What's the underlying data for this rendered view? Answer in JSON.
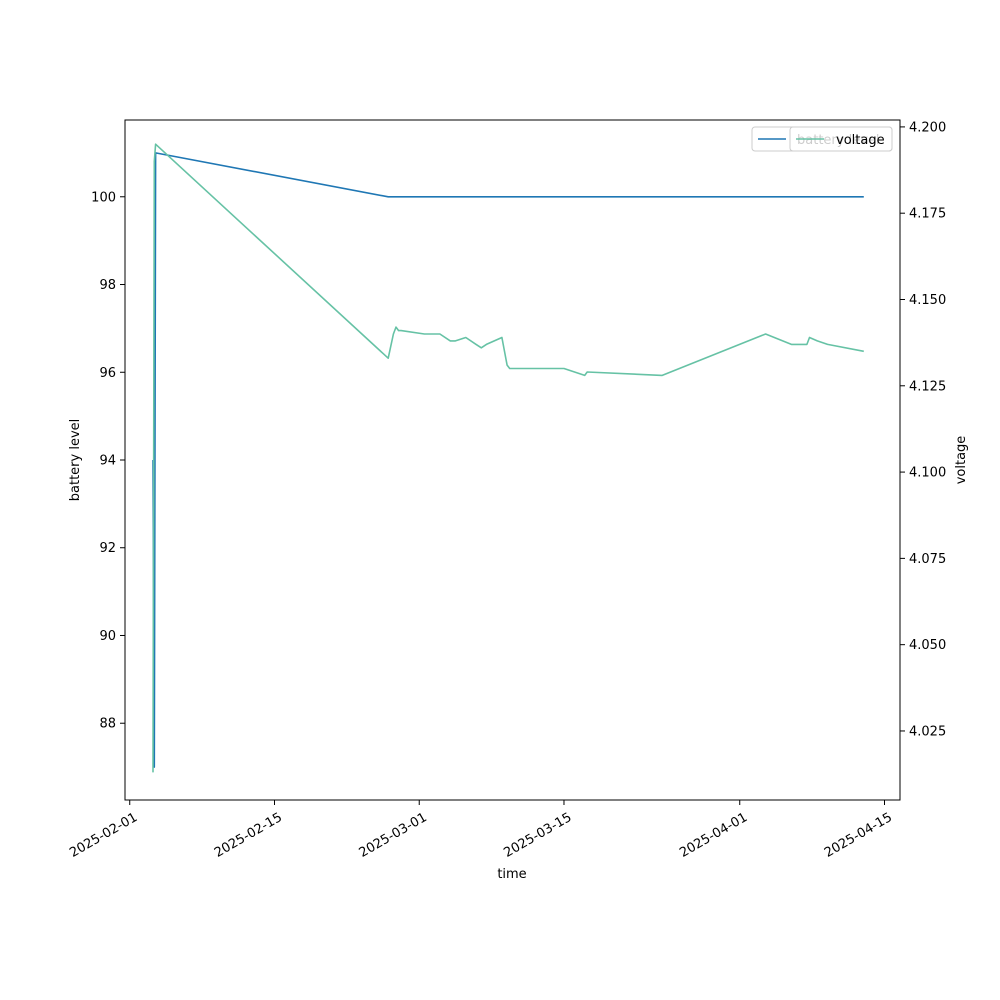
{
  "chart_data": {
    "type": "line",
    "xlabel": "time",
    "ylabel_left": "battery level",
    "ylabel_right": "voltage",
    "x_range": [
      "2025-01-31T13:00",
      "2025-04-16T12:00"
    ],
    "ylim_left": [
      86.25,
      101.75
    ],
    "ylim_right": [
      4.005,
      4.202
    ],
    "x_ticks": [
      "2025-02-01",
      "2025-02-15",
      "2025-03-01",
      "2025-03-15",
      "2025-04-01",
      "2025-04-15"
    ],
    "y_ticks_left": [
      "88",
      "90",
      "92",
      "94",
      "96",
      "98",
      "100"
    ],
    "y_ticks_right": [
      "4.025",
      "4.050",
      "4.075",
      "4.100",
      "4.125",
      "4.150",
      "4.175",
      "4.200"
    ],
    "grid": false,
    "legend_placement": "top-right",
    "colors": {
      "battery level": "#1f77b4",
      "voltage": "#66c2a5"
    },
    "series": [
      {
        "name": "battery level",
        "axis": "left",
        "x": [
          "2025-02-03T06:00",
          "2025-02-03T09:00",
          "2025-02-03T12:00",
          "2025-02-26T00:00",
          "2025-04-13T00:00"
        ],
        "y": [
          94,
          87,
          101,
          100,
          100
        ]
      },
      {
        "name": "voltage",
        "axis": "right",
        "x": [
          "2025-02-03T06:00",
          "2025-02-03T09:00",
          "2025-02-03T12:00",
          "2025-02-26T00:00",
          "2025-02-26T12:00",
          "2025-02-26T18:00",
          "2025-02-27T00:00",
          "2025-02-27T06:00",
          "2025-02-29T12:00",
          "2025-03-03T00:00",
          "2025-03-04T00:00",
          "2025-03-04T12:00",
          "2025-03-05T12:00",
          "2025-03-06T12:00",
          "2025-03-07T00:00",
          "2025-03-07T12:00",
          "2025-03-09T00:00",
          "2025-03-09T12:00",
          "2025-03-09T18:00",
          "2025-03-15T00:00",
          "2025-03-17T00:00",
          "2025-03-17T06:00",
          "2025-03-24T12:00",
          "2025-04-03T12:00",
          "2025-04-06T00:00",
          "2025-04-07T12:00",
          "2025-04-07T18:00",
          "2025-04-08T12:00",
          "2025-04-09T12:00",
          "2025-04-13T00:00"
        ],
        "y": [
          4.013,
          4.19,
          4.195,
          4.133,
          4.14,
          4.142,
          4.141,
          4.141,
          4.14,
          4.14,
          4.138,
          4.138,
          4.139,
          4.137,
          4.136,
          4.137,
          4.139,
          4.131,
          4.13,
          4.13,
          4.128,
          4.129,
          4.128,
          4.14,
          4.137,
          4.137,
          4.139,
          4.138,
          4.137,
          4.135
        ]
      }
    ]
  }
}
